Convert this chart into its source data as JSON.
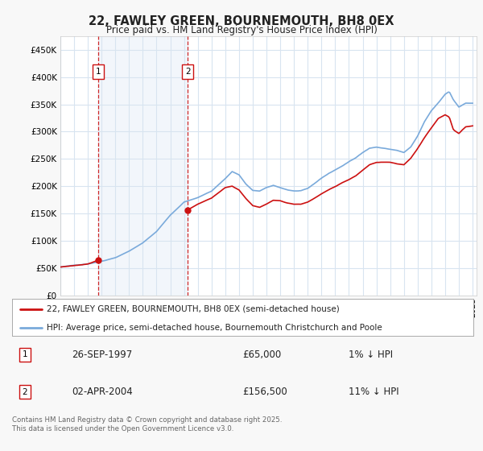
{
  "title": "22, FAWLEY GREEN, BOURNEMOUTH, BH8 0EX",
  "subtitle": "Price paid vs. HM Land Registry's House Price Index (HPI)",
  "background_color": "#f8f8f8",
  "plot_bg_color": "#ffffff",
  "grid_color": "#d8e4f0",
  "hpi_color": "#7aaadb",
  "price_color": "#cc1111",
  "dashed_color": "#cc1111",
  "shade_color": "#dce8f5",
  "ylim": [
    0,
    475000
  ],
  "yticks": [
    0,
    50000,
    100000,
    150000,
    200000,
    250000,
    300000,
    350000,
    400000,
    450000
  ],
  "ytick_labels": [
    "£0",
    "£50K",
    "£100K",
    "£150K",
    "£200K",
    "£250K",
    "£300K",
    "£350K",
    "£400K",
    "£450K"
  ],
  "sale1_date": "26-SEP-1997",
  "sale1_price": 65000,
  "sale1_x": 1997.74,
  "sale2_date": "02-APR-2004",
  "sale2_price": 156500,
  "sale2_x": 2004.27,
  "legend_line1": "22, FAWLEY GREEN, BOURNEMOUTH, BH8 0EX (semi-detached house)",
  "legend_line2": "HPI: Average price, semi-detached house, Bournemouth Christchurch and Poole",
  "sale1_pct": "1% ↓ HPI",
  "sale2_pct": "11% ↓ HPI",
  "footer": "Contains HM Land Registry data © Crown copyright and database right 2025.\nThis data is licensed under the Open Government Licence v3.0."
}
